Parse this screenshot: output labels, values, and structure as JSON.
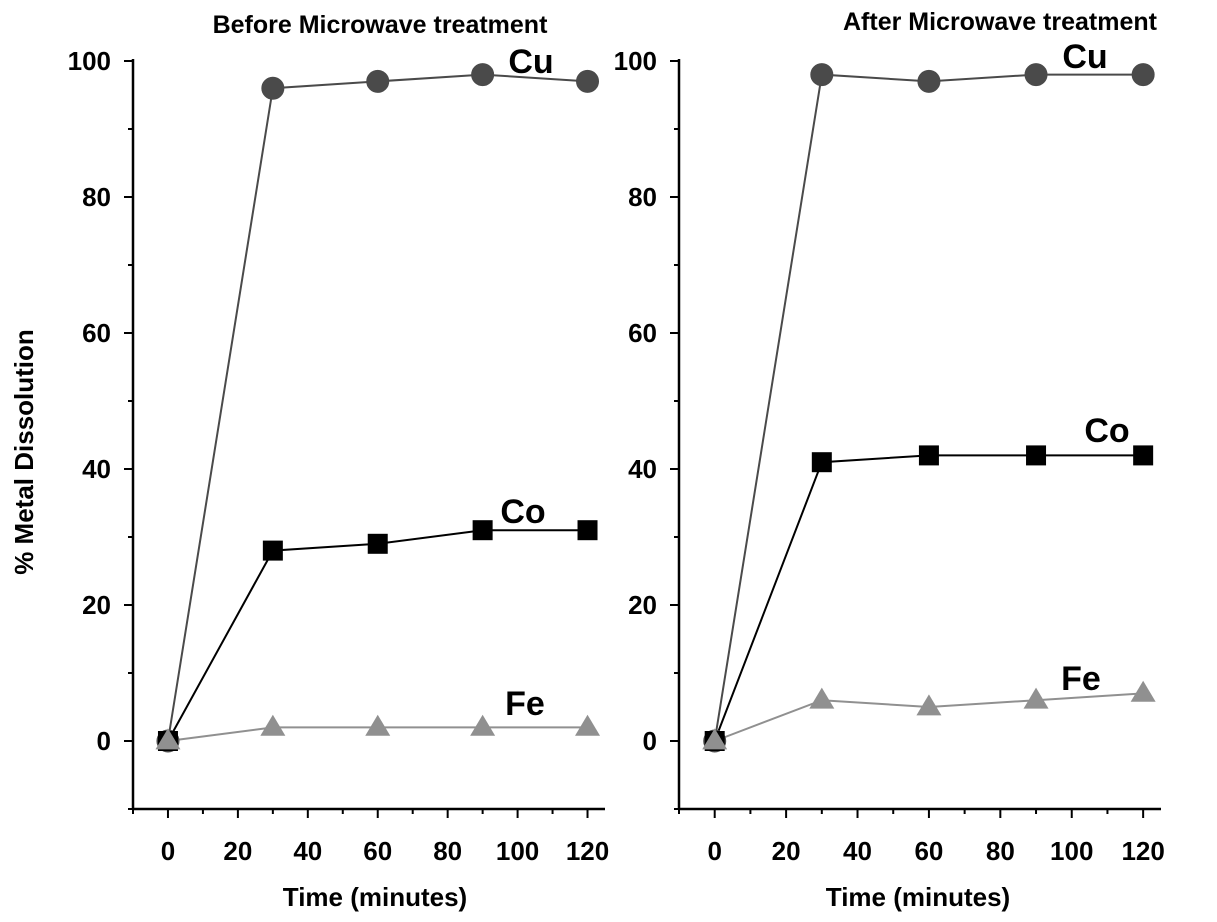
{
  "ylabel": "% Metal Dissolution",
  "colors": {
    "Cu": "#4a4a4a",
    "Co": "#000000",
    "Fe": "#909090"
  },
  "chart_data": [
    {
      "type": "line",
      "title": "Before Microwave treatment",
      "xlabel": "Time (minutes)",
      "ylabel": "% Metal Dissolution",
      "xlim": [
        -10,
        125
      ],
      "ylim": [
        -10,
        100
      ],
      "xticks": [
        0,
        20,
        40,
        60,
        80,
        100,
        120
      ],
      "yticks": [
        0,
        20,
        40,
        60,
        80,
        100
      ],
      "x": [
        0,
        30,
        60,
        90,
        120
      ],
      "series": [
        {
          "name": "Cu",
          "marker": "circle",
          "values": [
            0,
            96,
            97,
            98,
            97
          ]
        },
        {
          "name": "Co",
          "marker": "square",
          "values": [
            0,
            28,
            29,
            31,
            31
          ]
        },
        {
          "name": "Fe",
          "marker": "triangle",
          "values": [
            0,
            2,
            2,
            2,
            2
          ]
        }
      ]
    },
    {
      "type": "line",
      "title": "After Microwave treatment",
      "xlabel": "Time (minutes)",
      "ylabel": "",
      "xlim": [
        -10,
        125
      ],
      "ylim": [
        -10,
        100
      ],
      "xticks": [
        0,
        20,
        40,
        60,
        80,
        100,
        120
      ],
      "yticks": [
        0,
        20,
        40,
        60,
        80,
        100
      ],
      "x": [
        0,
        30,
        60,
        90,
        120
      ],
      "series": [
        {
          "name": "Cu",
          "marker": "circle",
          "values": [
            0,
            98,
            97,
            98,
            98
          ]
        },
        {
          "name": "Co",
          "marker": "square",
          "values": [
            0,
            41,
            42,
            42,
            42
          ]
        },
        {
          "name": "Fe",
          "marker": "triangle",
          "values": [
            0,
            6,
            5,
            6,
            7
          ]
        }
      ]
    }
  ]
}
